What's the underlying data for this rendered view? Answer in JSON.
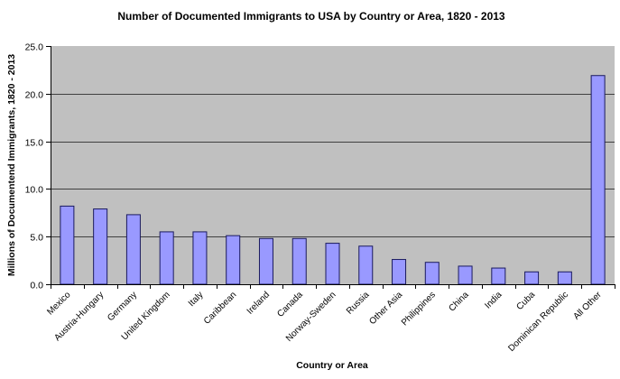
{
  "chart_data": {
    "type": "bar",
    "title": "Number of Documented Immigrants to USA by Country or Area, 1820 - 2013",
    "xlabel": "Country or Area",
    "ylabel": "Millions of Documentend Immigrants, 1820 - 2013",
    "ylim": [
      0,
      25
    ],
    "yticks": [
      "0.0",
      "5.0",
      "10.0",
      "15.0",
      "20.0",
      "25.0"
    ],
    "grid": true,
    "legend": null,
    "categories": [
      "Mexico",
      "Austria-Hungary",
      "Germany",
      "United Kingdom",
      "Italy",
      "Caribbean",
      "Ireland",
      "Canada",
      "Norway-Sweden",
      "Russia",
      "Other Asia",
      "Philippines",
      "China",
      "India",
      "Cuba",
      "Dominican Republic",
      "All Other"
    ],
    "values": [
      8.2,
      7.9,
      7.3,
      5.5,
      5.5,
      5.1,
      4.8,
      4.8,
      4.3,
      4.0,
      2.6,
      2.3,
      1.9,
      1.7,
      1.3,
      1.3,
      21.9
    ]
  },
  "colors": {
    "plot_background": "#c0c0c0",
    "bar_fill": "#9999ff",
    "bar_stroke": "#1a1a5e",
    "gridline": "#404040"
  }
}
